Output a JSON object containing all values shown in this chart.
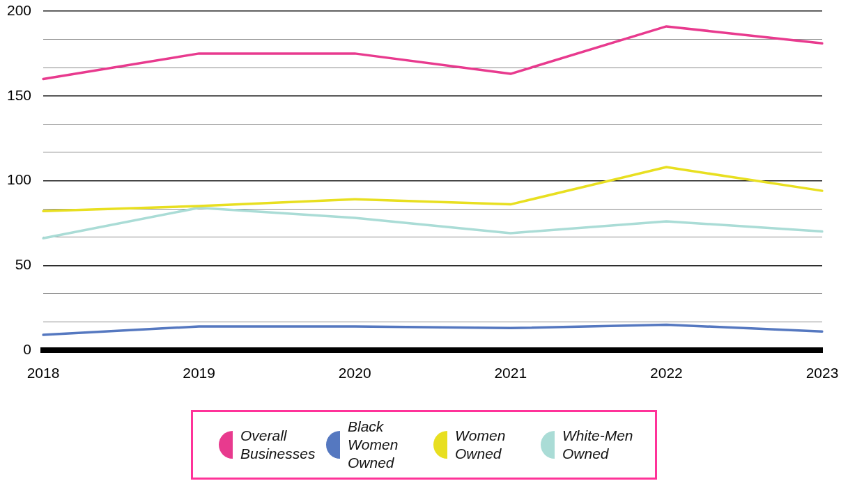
{
  "chart_data": {
    "type": "line",
    "categories": [
      "2018",
      "2019",
      "2020",
      "2021",
      "2022",
      "2023"
    ],
    "series": [
      {
        "name": "Overall Businesses",
        "color": "#e83a8e",
        "values": [
          160,
          175,
          175,
          163,
          191,
          181
        ]
      },
      {
        "name": "Black Women Owned",
        "color": "#5578c0",
        "values": [
          9,
          14,
          14,
          13,
          15,
          11
        ]
      },
      {
        "name": "Women Owned",
        "color": "#e8df20",
        "values": [
          82,
          85,
          89,
          86,
          108,
          94
        ]
      },
      {
        "name": "White-Men Owned",
        "color": "#aadcd6",
        "values": [
          66,
          84,
          78,
          69,
          76,
          70
        ]
      }
    ],
    "ylim": [
      0,
      200
    ],
    "yticks": [
      0,
      {
        "value": 16.7,
        "label": null
      },
      {
        "value": 33.3,
        "label": null
      },
      50,
      {
        "value": 66.7,
        "label": null
      },
      {
        "value": 83.3,
        "label": null
      },
      100,
      {
        "value": 116.7,
        "label": null
      },
      {
        "value": 133.3,
        "label": null
      },
      150,
      {
        "value": 166.7,
        "label": null
      },
      {
        "value": 183.3,
        "label": null
      },
      200
    ],
    "grid": "y",
    "legend": "bottom",
    "marker": "none",
    "line_style": "solid"
  }
}
